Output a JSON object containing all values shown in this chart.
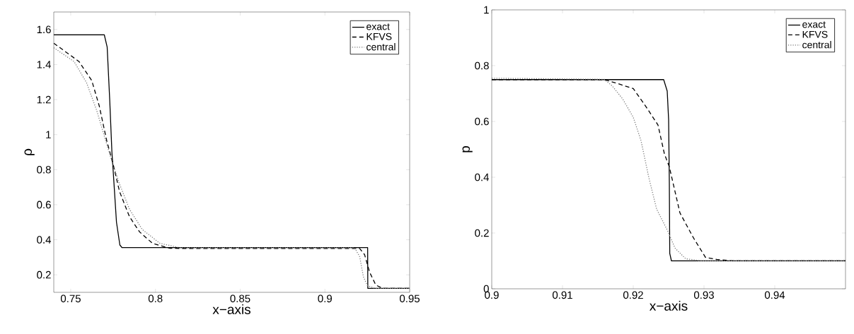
{
  "chart_data": [
    {
      "type": "line",
      "xlabel": "x−axis",
      "ylabel": "ρ",
      "xlim": [
        0.74,
        0.95
      ],
      "ylim": [
        0.1,
        1.7
      ],
      "xticks": [
        0.75,
        0.8,
        0.85,
        0.9,
        0.95
      ],
      "yticks": [
        0.2,
        0.4,
        0.6,
        0.8,
        1,
        1.2,
        1.4,
        1.6
      ],
      "legend": "top right",
      "grid": false,
      "series": [
        {
          "name": "exact",
          "color": "#000000",
          "line_style": "solid",
          "x": [
            0.74,
            0.7698,
            0.7715,
            0.773,
            0.7743,
            0.775,
            0.777,
            0.779,
            0.7803,
            0.81,
            0.9252,
            0.9253,
            0.95
          ],
          "values": [
            1.57,
            1.57,
            1.5,
            1.2,
            0.9,
            0.8,
            0.5,
            0.37,
            0.355,
            0.355,
            0.355,
            0.123,
            0.123
          ]
        },
        {
          "name": "KFVS",
          "color": "#000000",
          "line_style": "dashed",
          "x": [
            0.74,
            0.7549,
            0.7624,
            0.7668,
            0.7713,
            0.775,
            0.7788,
            0.7847,
            0.7907,
            0.7982,
            0.8086,
            0.85,
            0.9205,
            0.9234,
            0.9264,
            0.93,
            0.9339,
            0.95
          ],
          "values": [
            1.522,
            1.417,
            1.309,
            1.165,
            0.963,
            0.833,
            0.675,
            0.531,
            0.444,
            0.38,
            0.351,
            0.35,
            0.35,
            0.315,
            0.214,
            0.142,
            0.123,
            0.123
          ]
        },
        {
          "name": "central",
          "color": "#808080",
          "line_style": "dotted",
          "x": [
            0.74,
            0.752,
            0.7594,
            0.7654,
            0.7698,
            0.7743,
            0.7788,
            0.7847,
            0.7922,
            0.8026,
            0.8146,
            0.9175,
            0.9205,
            0.9227,
            0.925,
            0.9294,
            0.95
          ],
          "values": [
            1.496,
            1.417,
            1.295,
            1.136,
            0.992,
            0.848,
            0.718,
            0.574,
            0.459,
            0.38,
            0.354,
            0.354,
            0.304,
            0.189,
            0.139,
            0.123,
            0.123
          ]
        }
      ]
    },
    {
      "type": "line",
      "xlabel": "x−axis",
      "ylabel": "p",
      "xlim": [
        0.9,
        0.95
      ],
      "ylim": [
        0,
        1
      ],
      "xticks": [
        0.9,
        0.91,
        0.92,
        0.93,
        0.94
      ],
      "yticks": [
        0,
        0.2,
        0.4,
        0.6,
        0.8,
        1
      ],
      "legend": "top right",
      "grid": false,
      "series": [
        {
          "name": "exact",
          "color": "#000000",
          "line_style": "solid",
          "x": [
            0.9,
            0.9243,
            0.9248,
            0.925,
            0.9251,
            0.92516,
            0.9254,
            0.95
          ],
          "values": [
            0.75,
            0.75,
            0.709,
            0.606,
            0.38,
            0.127,
            0.1,
            0.1
          ]
        },
        {
          "name": "KFVS",
          "color": "#000000",
          "line_style": "dashed",
          "x": [
            0.9,
            0.9159,
            0.9174,
            0.92,
            0.9218,
            0.9235,
            0.9244,
            0.9251,
            0.9266,
            0.9285,
            0.9302,
            0.9318,
            0.9341,
            0.95
          ],
          "values": [
            0.75,
            0.75,
            0.739,
            0.718,
            0.653,
            0.587,
            0.484,
            0.437,
            0.272,
            0.183,
            0.113,
            0.105,
            0.1,
            0.1
          ]
        },
        {
          "name": "central",
          "color": "#808080",
          "line_style": "dotted",
          "x": [
            0.9,
            0.9159,
            0.917,
            0.9185,
            0.92,
            0.9211,
            0.9222,
            0.9233,
            0.9248,
            0.9259,
            0.9274,
            0.9296,
            0.95
          ],
          "values": [
            0.755,
            0.751,
            0.728,
            0.681,
            0.615,
            0.531,
            0.399,
            0.286,
            0.211,
            0.146,
            0.108,
            0.1,
            0.1
          ]
        }
      ]
    }
  ]
}
